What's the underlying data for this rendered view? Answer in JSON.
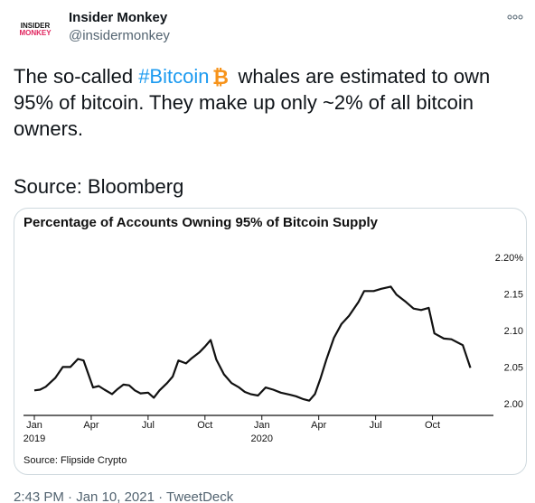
{
  "author": {
    "display_name": "Insider Monkey",
    "handle": "@insidermonkey",
    "avatar_logo_lines": [
      "INSIDER",
      "MONKEY"
    ],
    "avatar_icon": "insider-monkey-logo"
  },
  "tweet": {
    "text_before": "The so-called ",
    "hashtag": "#Bitcoin",
    "hashtag_emoji": "bitcoin-icon",
    "text_after": "whales are estimated to own 95% of bitcoin. They make up only ~2% of all bitcoin owners.",
    "source_line": "Source: Bloomberg"
  },
  "meta": {
    "time": "2:43 PM",
    "separator": "·",
    "date": "Jan 10, 2021",
    "client": "TweetDeck"
  },
  "colors": {
    "link": "#1d9bf0",
    "bitcoin": "#f7931a",
    "text": "#0f1419",
    "muted": "#536471"
  },
  "chart_data": {
    "type": "line",
    "title": "Percentage of Accounts Owning 95% of Bitcoin Supply",
    "source": "Source: Flipside Crypto",
    "xlabel": "",
    "ylabel": "",
    "x_ticks": [
      "Jan\n2019",
      "Apr",
      "Jul",
      "Oct",
      "Jan\n2020",
      "Apr",
      "Jul",
      "Oct"
    ],
    "y_ticks": [
      "2.20%",
      "2.15",
      "2.10",
      "2.05",
      "2.00"
    ],
    "ylim": [
      1.99,
      2.205
    ],
    "xlim": [
      0,
      23.5
    ],
    "grid": false,
    "series": [
      {
        "x": [
          0,
          0.3,
          0.6,
          1.1,
          1.5,
          1.9,
          2.3,
          2.6,
          3.1,
          3.4,
          3.7,
          4.1,
          4.4,
          4.7,
          5.0,
          5.3,
          5.6,
          6.0,
          6.3,
          6.6,
          7.0,
          7.3,
          7.6,
          8.0,
          8.3,
          8.7,
          9.0,
          9.3,
          9.6,
          10.0,
          10.4,
          10.8,
          11.1,
          11.4,
          11.8,
          12.2,
          12.6,
          13.0,
          13.5,
          13.8,
          14.2,
          14.5,
          14.8,
          15.1,
          15.4,
          15.8,
          16.2,
          16.6,
          17.1,
          17.4,
          17.9,
          18.3,
          18.8,
          19.1,
          19.6,
          20.0,
          20.4,
          20.8,
          21.1,
          21.6,
          22.0,
          22.6,
          23.0
        ],
        "values": [
          2.018,
          2.019,
          2.023,
          2.035,
          2.05,
          2.05,
          2.061,
          2.059,
          2.022,
          2.024,
          2.019,
          2.013,
          2.02,
          2.026,
          2.025,
          2.018,
          2.014,
          2.015,
          2.008,
          2.018,
          2.028,
          2.037,
          2.059,
          2.055,
          2.062,
          2.07,
          2.078,
          2.087,
          2.06,
          2.04,
          2.028,
          2.022,
          2.016,
          2.013,
          2.011,
          2.022,
          2.019,
          2.015,
          2.012,
          2.01,
          2.006,
          2.004,
          2.013,
          2.035,
          2.06,
          2.09,
          2.109,
          2.12,
          2.139,
          2.154,
          2.154,
          2.157,
          2.16,
          2.149,
          2.139,
          2.13,
          2.128,
          2.131,
          2.096,
          2.089,
          2.088,
          2.08,
          2.049
        ]
      }
    ]
  }
}
